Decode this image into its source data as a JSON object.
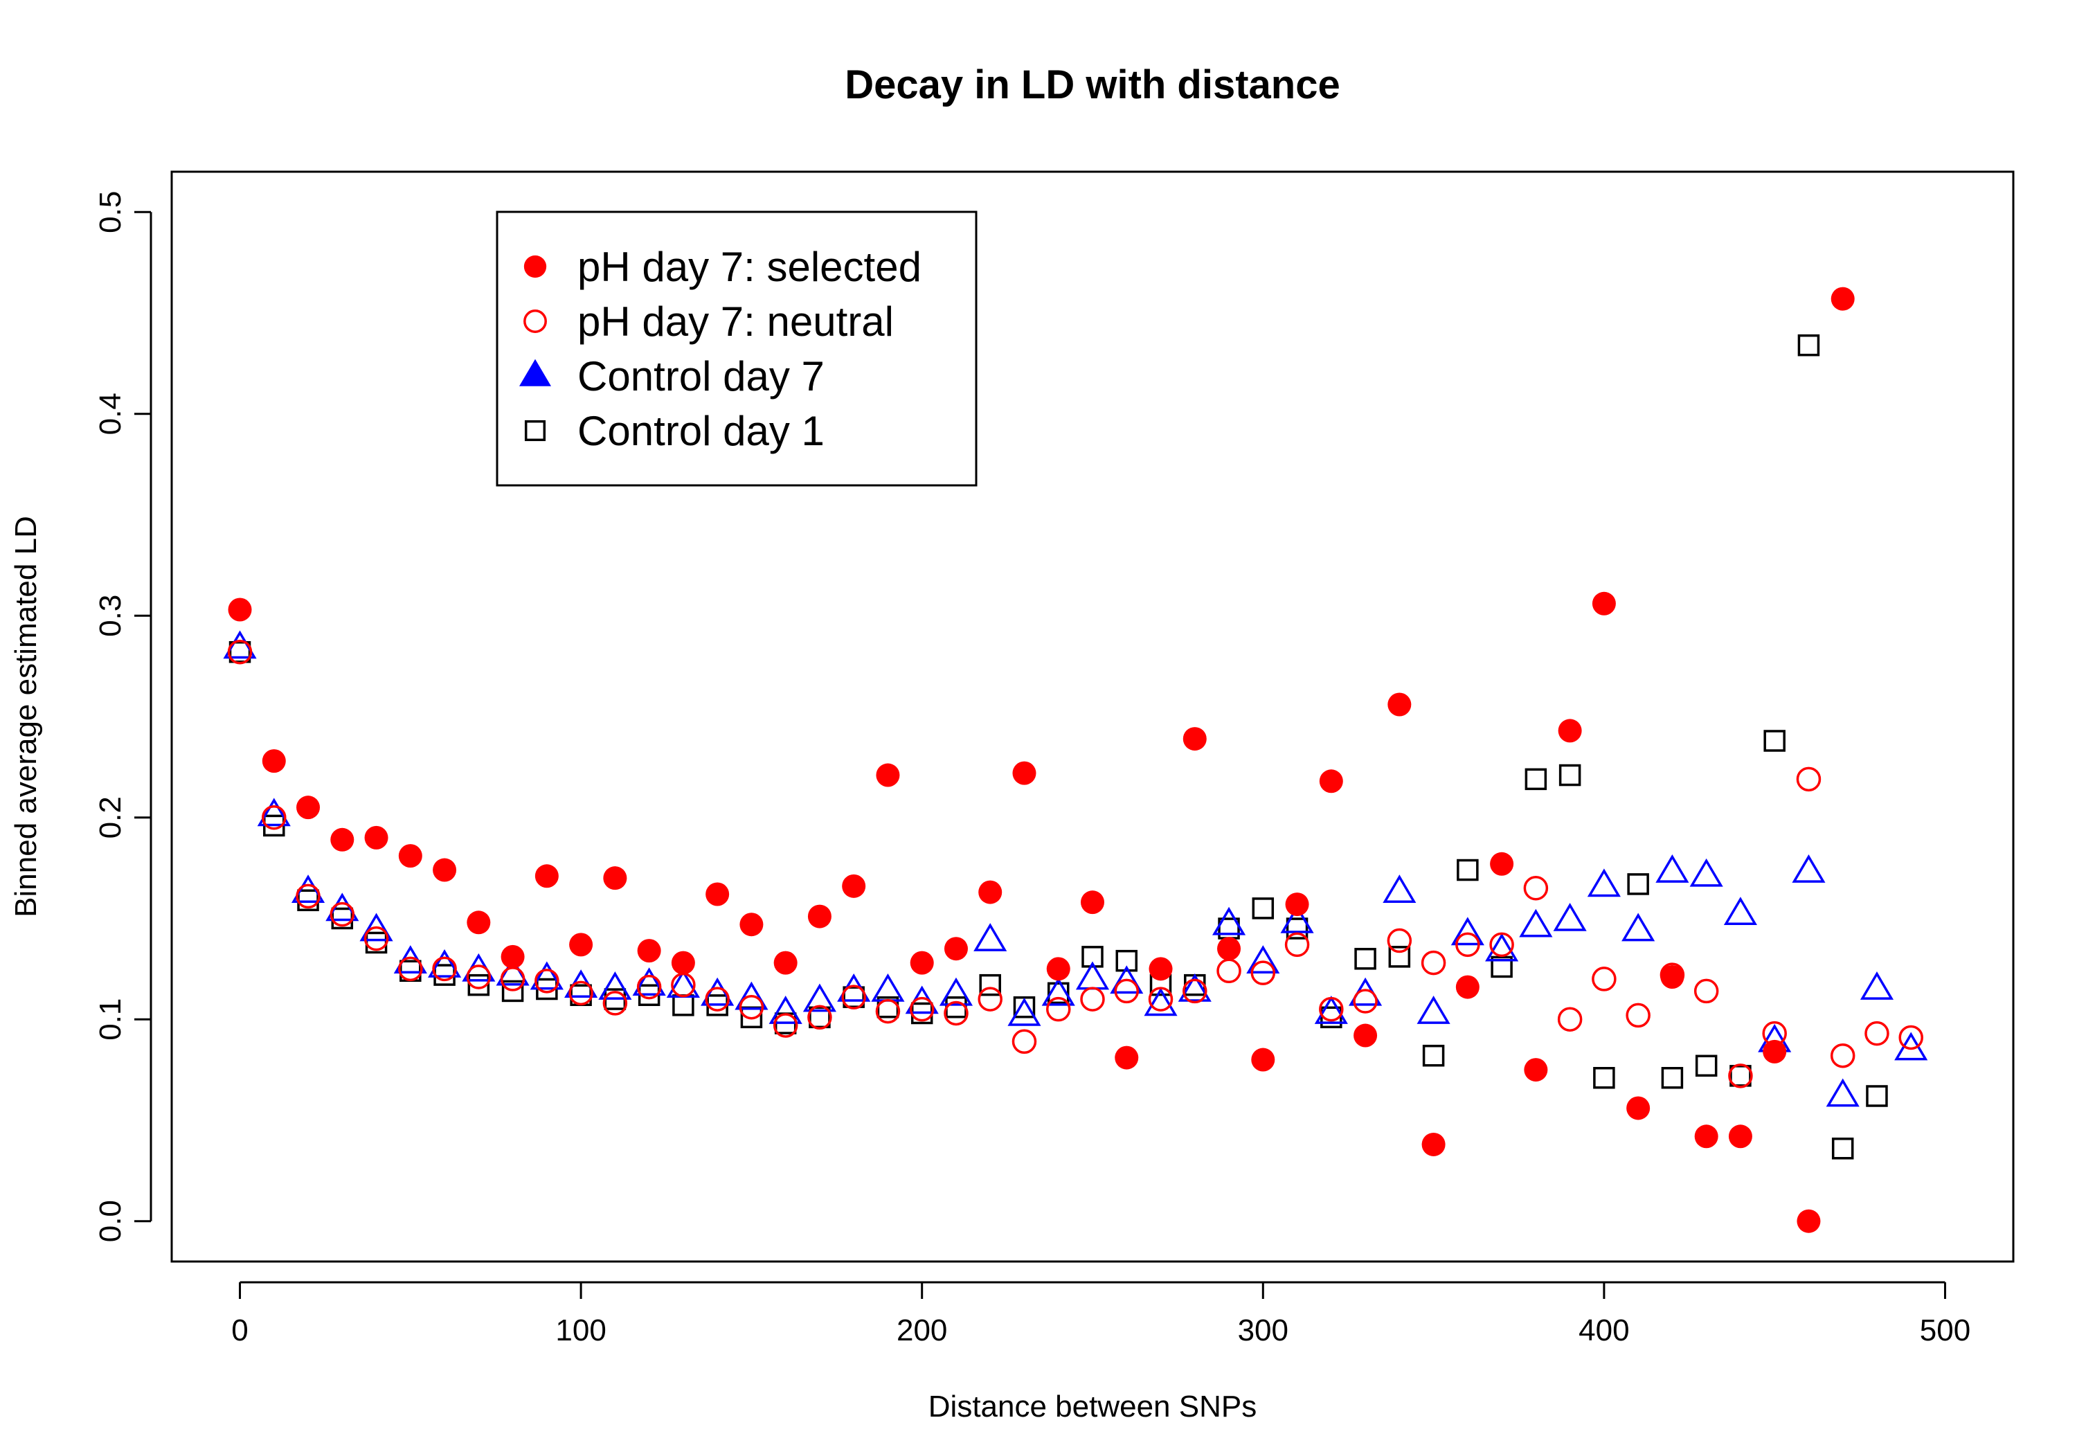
{
  "chart_data": {
    "type": "scatter",
    "title": "Decay in LD with distance",
    "xlabel": "Distance between SNPs",
    "ylabel": "Binned average estimated LD",
    "xlim": [
      -20,
      520
    ],
    "ylim": [
      -0.02,
      0.52
    ],
    "xticks": [
      0,
      100,
      200,
      300,
      400,
      500
    ],
    "yticks": [
      0.0,
      0.1,
      0.2,
      0.3,
      0.4,
      0.5
    ],
    "xtick_labels": [
      "0",
      "100",
      "200",
      "300",
      "400",
      "500"
    ],
    "ytick_labels": [
      "0.0",
      "0.1",
      "0.2",
      "0.3",
      "0.4",
      "0.5"
    ],
    "grid": false,
    "legend_position": "top-left",
    "series": [
      {
        "name": "pH day 7: selected",
        "marker": "filled-circle",
        "color": "#ff0000",
        "x": [
          0,
          10,
          20,
          30,
          40,
          50,
          60,
          70,
          80,
          90,
          100,
          110,
          120,
          130,
          140,
          150,
          160,
          170,
          180,
          190,
          200,
          210,
          220,
          230,
          240,
          250,
          260,
          270,
          280,
          290,
          300,
          310,
          320,
          330,
          340,
          350,
          360,
          370,
          380,
          390,
          400,
          410,
          420,
          430,
          440,
          450,
          460,
          470
        ],
        "y": [
          0.303,
          0.228,
          0.205,
          0.189,
          0.19,
          0.181,
          0.174,
          0.148,
          0.131,
          0.171,
          0.137,
          0.17,
          0.134,
          0.128,
          0.162,
          0.147,
          0.128,
          0.151,
          0.166,
          0.221,
          0.128,
          0.135,
          0.163,
          0.222,
          0.125,
          0.158,
          0.081,
          0.125,
          0.239,
          0.135,
          0.08,
          0.157,
          0.218,
          0.092,
          0.256,
          0.038,
          0.116,
          0.177,
          0.075,
          0.243,
          0.306,
          0.056,
          0.121,
          0.042,
          0.042,
          0.084,
          0.0,
          0.457
        ]
      },
      {
        "name": "pH day 7: neutral",
        "marker": "open-circle",
        "color": "#ff0000",
        "x": [
          0,
          10,
          20,
          30,
          40,
          50,
          60,
          70,
          80,
          90,
          100,
          110,
          120,
          130,
          140,
          150,
          160,
          170,
          180,
          190,
          200,
          210,
          220,
          230,
          240,
          250,
          260,
          270,
          280,
          290,
          300,
          310,
          320,
          330,
          340,
          350,
          360,
          370,
          380,
          390,
          400,
          410,
          420,
          430,
          440,
          450,
          460,
          470,
          480,
          490
        ],
        "y": [
          0.282,
          0.2,
          0.161,
          0.152,
          0.14,
          0.125,
          0.125,
          0.121,
          0.12,
          0.119,
          0.113,
          0.108,
          0.116,
          0.117,
          0.11,
          0.106,
          0.097,
          0.101,
          0.111,
          0.104,
          0.105,
          0.103,
          0.11,
          0.089,
          0.105,
          0.11,
          0.114,
          0.11,
          0.114,
          0.124,
          0.123,
          0.137,
          0.105,
          0.109,
          0.139,
          0.128,
          0.137,
          0.137,
          0.165,
          0.1,
          0.12,
          0.102,
          0.122,
          0.114,
          0.072,
          0.093,
          0.219,
          0.082,
          0.093,
          0.091
        ]
      },
      {
        "name": "Control day 7",
        "marker": "open-triangle",
        "color": "#0000ff",
        "legend_marker": "filled-triangle",
        "x": [
          0,
          10,
          20,
          30,
          40,
          50,
          60,
          70,
          80,
          90,
          100,
          110,
          120,
          130,
          140,
          150,
          160,
          170,
          180,
          190,
          200,
          210,
          220,
          230,
          240,
          250,
          260,
          270,
          280,
          290,
          300,
          310,
          320,
          330,
          340,
          350,
          360,
          370,
          380,
          390,
          400,
          410,
          420,
          430,
          440,
          450,
          460,
          470,
          480,
          490
        ],
        "y": [
          0.284,
          0.201,
          0.163,
          0.154,
          0.144,
          0.128,
          0.126,
          0.124,
          0.122,
          0.12,
          0.116,
          0.115,
          0.117,
          0.116,
          0.112,
          0.11,
          0.103,
          0.109,
          0.114,
          0.114,
          0.108,
          0.112,
          0.139,
          0.102,
          0.112,
          0.12,
          0.118,
          0.107,
          0.114,
          0.147,
          0.128,
          0.148,
          0.103,
          0.112,
          0.163,
          0.103,
          0.142,
          0.134,
          0.146,
          0.149,
          0.166,
          0.144,
          0.173,
          0.171,
          0.152,
          0.089,
          0.173,
          0.062,
          0.115,
          0.085
        ]
      },
      {
        "name": "Control day 1",
        "marker": "open-square",
        "color": "#000000",
        "x": [
          0,
          10,
          20,
          30,
          40,
          50,
          60,
          70,
          80,
          90,
          100,
          110,
          120,
          130,
          140,
          150,
          160,
          170,
          180,
          190,
          200,
          210,
          220,
          230,
          240,
          250,
          260,
          270,
          280,
          290,
          300,
          310,
          320,
          330,
          340,
          350,
          360,
          370,
          380,
          390,
          400,
          410,
          420,
          430,
          440,
          450,
          460,
          470,
          480
        ],
        "y": [
          0.282,
          0.196,
          0.159,
          0.15,
          0.138,
          0.124,
          0.122,
          0.117,
          0.114,
          0.115,
          0.112,
          0.11,
          0.112,
          0.107,
          0.107,
          0.101,
          0.098,
          0.101,
          0.111,
          0.106,
          0.103,
          0.106,
          0.117,
          0.106,
          0.113,
          0.131,
          0.129,
          0.117,
          0.117,
          0.145,
          0.155,
          0.145,
          0.101,
          0.13,
          0.131,
          0.082,
          0.174,
          0.126,
          0.219,
          0.221,
          0.071,
          0.167,
          0.071,
          0.077,
          0.072,
          0.238,
          0.434,
          0.036,
          0.062
        ]
      }
    ]
  }
}
